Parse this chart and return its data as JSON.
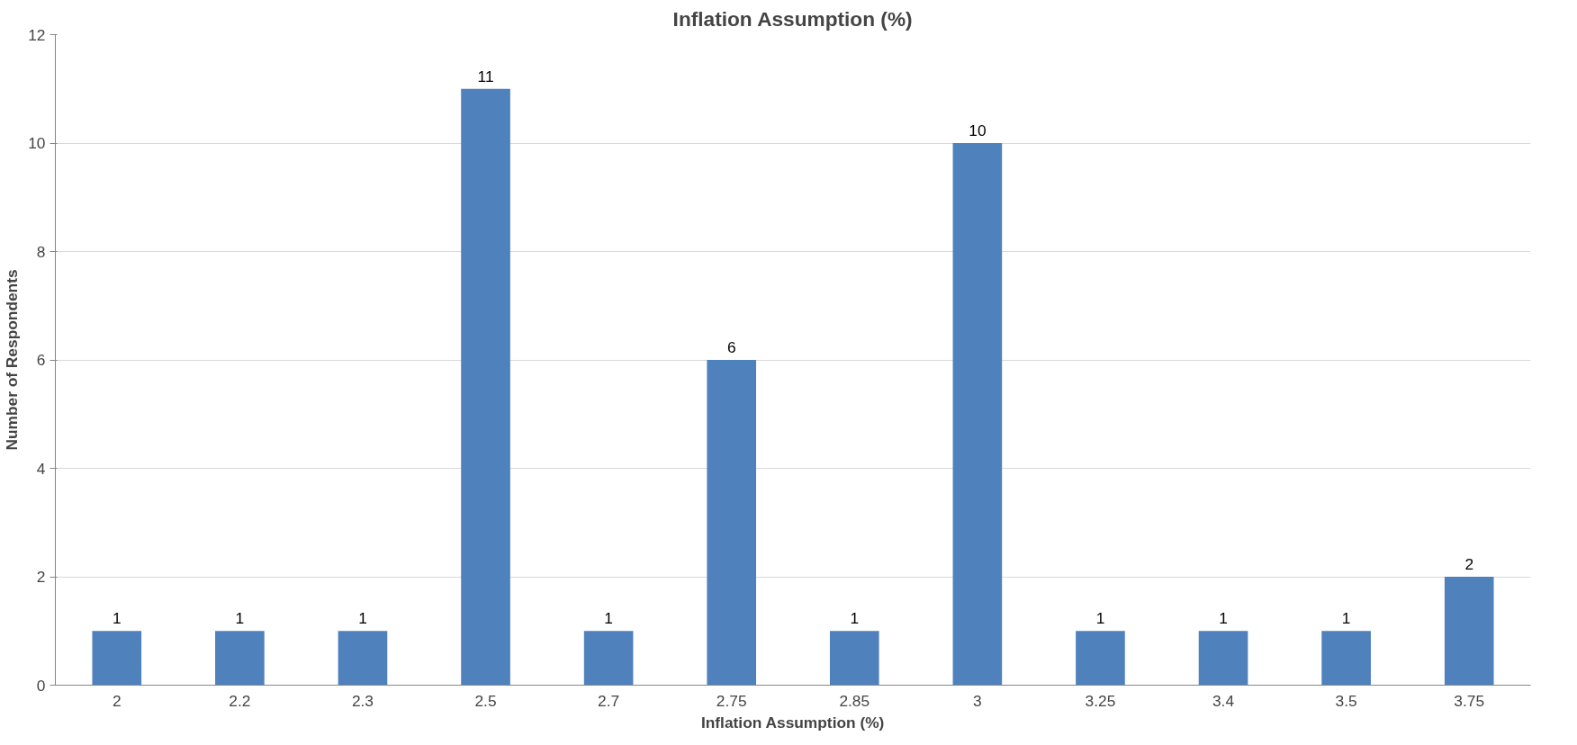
{
  "chart_data": {
    "type": "bar",
    "title": "Inflation Assumption (%)",
    "xlabel": "Inflation Assumption (%)",
    "ylabel": "Number of Respondents",
    "categories": [
      "2",
      "2.2",
      "2.3",
      "2.5",
      "2.7",
      "2.75",
      "2.85",
      "3",
      "3.25",
      "3.4",
      "3.5",
      "3.75"
    ],
    "values": [
      1,
      1,
      1,
      11,
      1,
      6,
      1,
      10,
      1,
      1,
      1,
      2
    ],
    "color": "#4f81bd",
    "ylim": [
      0,
      12
    ],
    "yticks": [
      0,
      2,
      4,
      6,
      8,
      10,
      12
    ],
    "grid": "y",
    "data_labels": true
  }
}
